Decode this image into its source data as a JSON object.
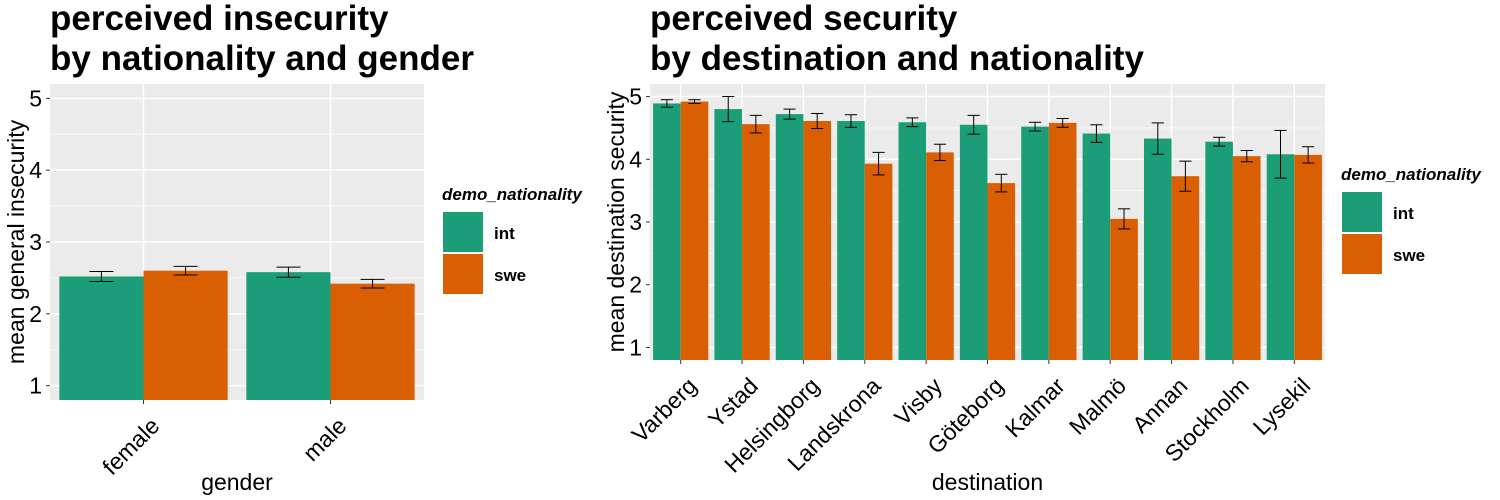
{
  "chart_data": [
    {
      "type": "bar",
      "title": [
        "perceived insecurity",
        "by nationality and gender"
      ],
      "xlabel": "gender",
      "ylabel": "mean general insecurity",
      "ylim": [
        0.8,
        5.2
      ],
      "yticks": [
        1,
        2,
        3,
        4,
        5
      ],
      "categories": [
        "female",
        "male"
      ],
      "series": [
        {
          "name": "int",
          "values": [
            2.52,
            2.58
          ],
          "err": [
            0.07,
            0.07
          ]
        },
        {
          "name": "swe",
          "values": [
            2.6,
            2.42
          ],
          "err": [
            0.06,
            0.06
          ]
        }
      ],
      "legend": {
        "title": "demo_nationality",
        "position": "right"
      },
      "grid": true
    },
    {
      "type": "bar",
      "title": [
        "perceived security",
        "by destination and nationality"
      ],
      "xlabel": "destination",
      "ylabel": "mean destination security",
      "ylim": [
        0.8,
        5.2
      ],
      "yticks": [
        1,
        2,
        3,
        4,
        5
      ],
      "categories": [
        "Varberg",
        "Ystad",
        "Helsingborg",
        "Landskrona",
        "Visby",
        "Göteborg",
        "Kalmar",
        "Malmö",
        "Annan",
        "Stockholm",
        "Lysekil"
      ],
      "series": [
        {
          "name": "int",
          "values": [
            4.89,
            4.8,
            4.72,
            4.61,
            4.59,
            4.55,
            4.52,
            4.41,
            4.33,
            4.28,
            4.08
          ],
          "err": [
            0.06,
            0.2,
            0.08,
            0.1,
            0.07,
            0.15,
            0.07,
            0.14,
            0.25,
            0.07,
            0.38
          ]
        },
        {
          "name": "swe",
          "values": [
            4.92,
            4.56,
            4.61,
            3.93,
            4.11,
            3.62,
            4.58,
            3.05,
            3.73,
            4.05,
            4.07
          ],
          "err": [
            0.03,
            0.14,
            0.12,
            0.18,
            0.13,
            0.14,
            0.07,
            0.16,
            0.24,
            0.09,
            0.13
          ]
        }
      ],
      "legend": {
        "title": "demo_nationality",
        "position": "right"
      },
      "grid": true
    }
  ],
  "colors": {
    "int": "#1b9e77",
    "swe": "#d95f02",
    "panel": "#ebebeb",
    "grid_major": "#ffffff"
  }
}
